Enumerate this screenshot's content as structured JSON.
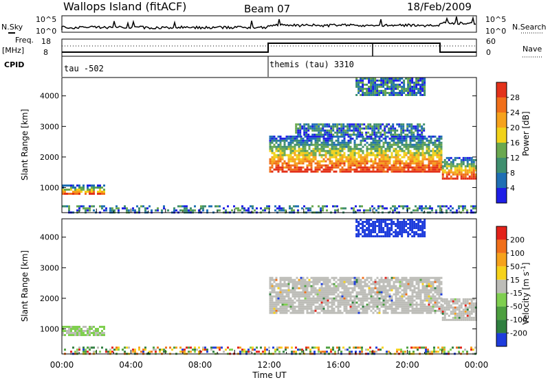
{
  "header": {
    "title": "Wallops Island (fitACF)",
    "beam": "Beam 07",
    "date": "18/Feb/2009"
  },
  "noise_panel": {
    "left_label": "N.Sky",
    "right_label": "N.Search",
    "left_ticks": [
      "10^5",
      "10^0"
    ],
    "right_ticks": [
      "10^5",
      "10^0"
    ]
  },
  "freq_panel": {
    "left_label_1": "Freq.",
    "left_label_2": "[MHz]",
    "right_label": "Nave",
    "left_ticks": [
      "18",
      "8"
    ],
    "right_ticks": [
      "60",
      "0"
    ],
    "cpid_label": "CPID",
    "cpid_segments": [
      {
        "text": "tau -502",
        "start_hour": 0
      },
      {
        "text": "themis (tau) 3310",
        "start_hour": 12
      }
    ]
  },
  "chart_data": [
    {
      "type": "heatmap",
      "parameter": "power",
      "ylabel": "Slant Range [km]",
      "y_ticks": [
        1000,
        2000,
        3000,
        4000
      ],
      "ylim": [
        180,
        4600
      ],
      "colorbar": {
        "label": "Power [dB]",
        "tick_labels": [
          "4",
          "8",
          "12",
          "16",
          "20",
          "24",
          "28"
        ],
        "colors": [
          "#1e1ee6",
          "#1f6fb4",
          "#3f8f6f",
          "#6aa84f",
          "#f1d21a",
          "#f6a21c",
          "#f06f1a",
          "#e3321a"
        ]
      },
      "regions": [
        {
          "hours": [
            0.0,
            2.4
          ],
          "range_km": [
            780,
            1100
          ],
          "level": "strong"
        },
        {
          "hours": [
            12.0,
            22.0
          ],
          "range_km": [
            1500,
            2700
          ],
          "level": "strong"
        },
        {
          "hours": [
            13.5,
            21.0
          ],
          "range_km": [
            2700,
            3100
          ],
          "level": "moderate"
        },
        {
          "hours": [
            17.0,
            21.0
          ],
          "range_km": [
            4000,
            4600
          ],
          "level": "moderate"
        },
        {
          "hours": [
            22.0,
            24.0
          ],
          "range_km": [
            1300,
            2000
          ],
          "level": "strong"
        },
        {
          "hours": [
            0.0,
            24.0
          ],
          "range_km": [
            200,
            420
          ],
          "level": "weak"
        }
      ]
    },
    {
      "type": "heatmap",
      "parameter": "velocity",
      "ylabel": "Slant Range [km]",
      "y_ticks": [
        1000,
        2000,
        3000,
        4000
      ],
      "ylim": [
        180,
        4600
      ],
      "xlabel": "Time UT",
      "x_ticks": [
        "00:00",
        "04:00",
        "08:00",
        "12:00",
        "16:00",
        "20:00",
        "00:00"
      ],
      "colorbar": {
        "label": "Velocity [m s",
        "label_sup": "-1",
        "label_end": "]",
        "tick_labels": [
          "200",
          "100",
          "50",
          "15",
          "-15",
          "-50",
          "-100",
          "-200"
        ],
        "colors": [
          "#1e3cdc",
          "#2f7f3f",
          "#4d9f3f",
          "#7fcf4f",
          "#bdbdb8",
          "#f6d21a",
          "#f6a21c",
          "#f06f1a",
          "#e3221a"
        ]
      },
      "regions": [
        {
          "hours": [
            0.0,
            2.4
          ],
          "range_km": [
            780,
            1100
          ],
          "level": "green-grey"
        },
        {
          "hours": [
            12.0,
            22.0
          ],
          "range_km": [
            1500,
            2700
          ],
          "level": "grey"
        },
        {
          "hours": [
            17.0,
            21.0
          ],
          "range_km": [
            4000,
            4600
          ],
          "level": "blue"
        },
        {
          "hours": [
            22.0,
            24.0
          ],
          "range_km": [
            1300,
            2000
          ],
          "level": "grey"
        },
        {
          "hours": [
            0.0,
            24.0
          ],
          "range_km": [
            200,
            420
          ],
          "level": "mixed"
        }
      ]
    }
  ]
}
